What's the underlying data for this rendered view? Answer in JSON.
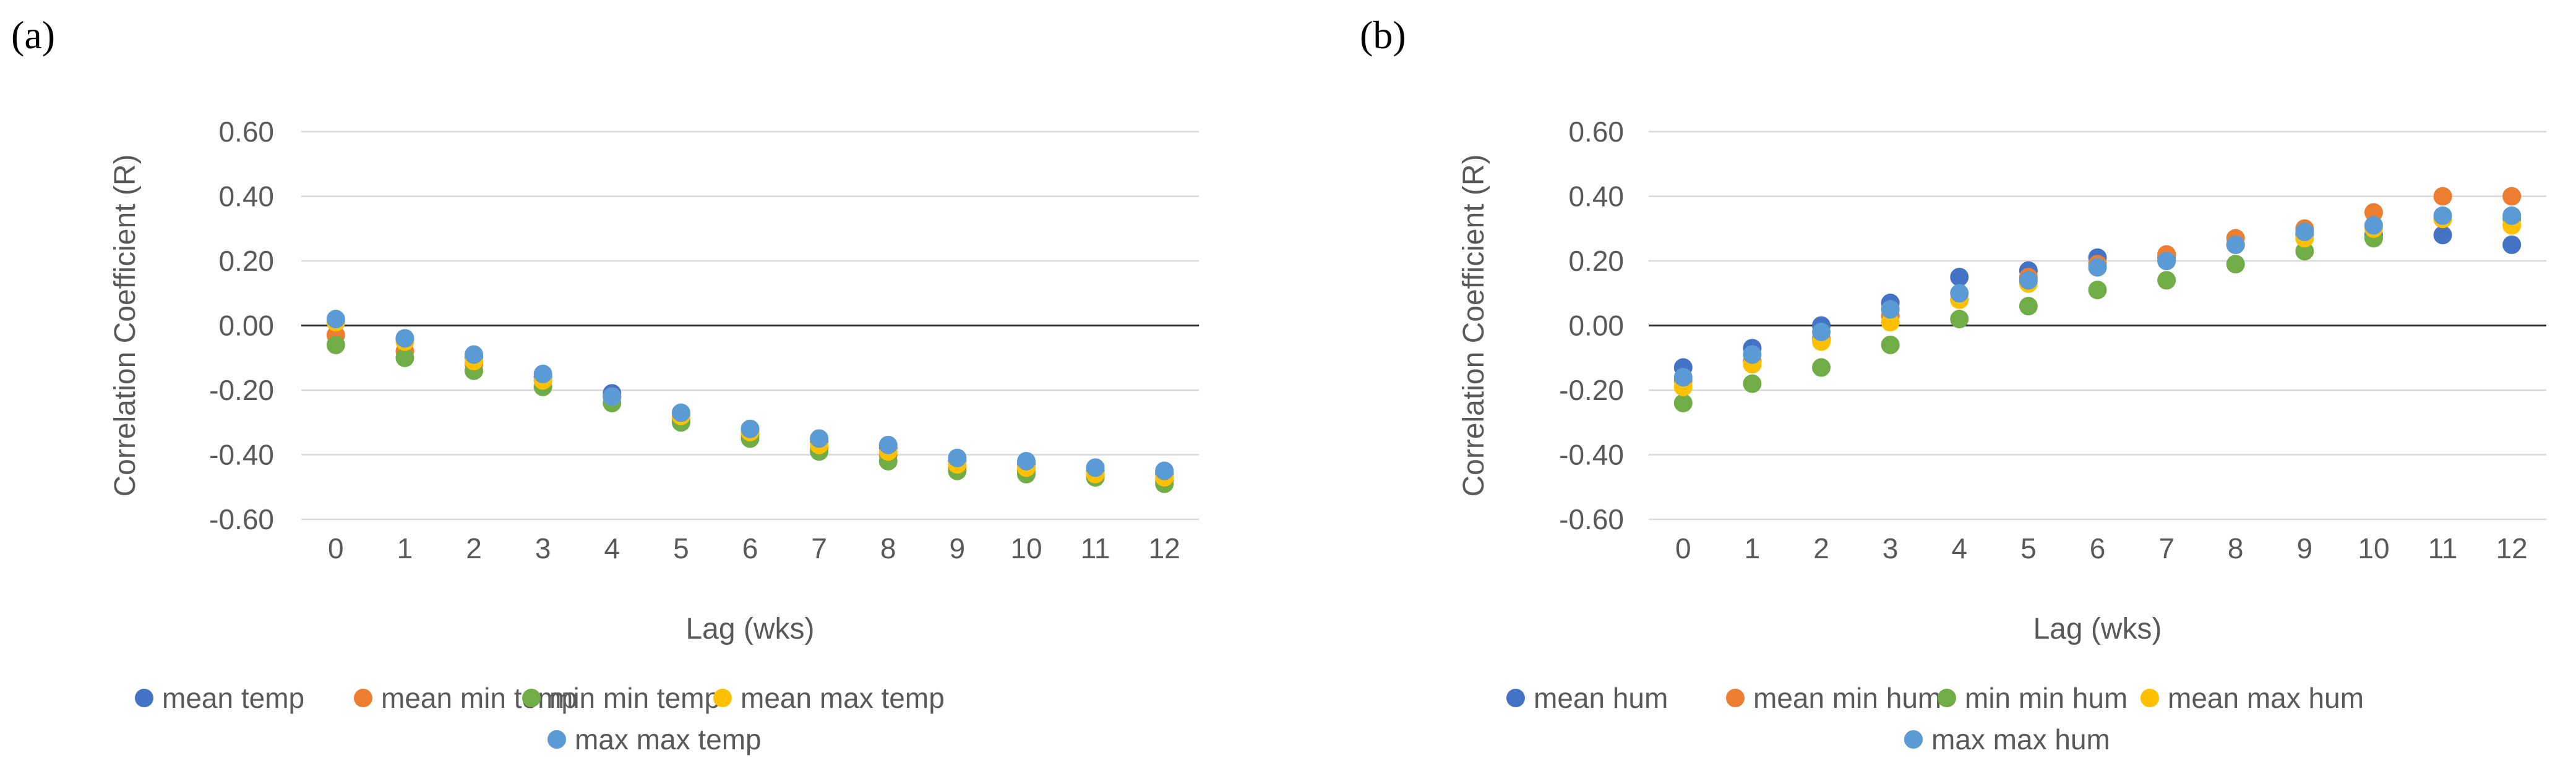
{
  "chart_data": [
    {
      "panel": "(a)",
      "type": "scatter",
      "ylabel": "Correlation Coefficient (R)",
      "xlabel": "Lag (wks)",
      "ylim": [
        -0.6,
        0.6
      ],
      "yticks": [
        "0.60",
        "0.40",
        "0.20",
        "0.00",
        "-0.20",
        "-0.40",
        "-0.60"
      ],
      "ytick_values": [
        0.6,
        0.4,
        0.2,
        0.0,
        -0.2,
        -0.4,
        -0.6
      ],
      "x": [
        0,
        1,
        2,
        3,
        4,
        5,
        6,
        7,
        8,
        9,
        10,
        11,
        12
      ],
      "xticks": [
        "0",
        "1",
        "2",
        "3",
        "4",
        "5",
        "6",
        "7",
        "8",
        "9",
        "10",
        "11",
        "12"
      ],
      "legend_position": "bottom",
      "series": [
        {
          "name": "mean temp",
          "color": "#4472C4",
          "values": [
            0.01,
            -0.04,
            -0.1,
            -0.16,
            -0.21,
            -0.28,
            -0.33,
            -0.36,
            -0.38,
            -0.42,
            -0.43,
            -0.45,
            -0.46
          ]
        },
        {
          "name": "mean min temp",
          "color": "#ED7D31",
          "values": [
            -0.03,
            -0.08,
            -0.12,
            -0.17,
            -0.22,
            -0.29,
            -0.34,
            -0.38,
            -0.4,
            -0.44,
            -0.45,
            -0.47,
            -0.48
          ]
        },
        {
          "name": "min min temp",
          "color": "#70AD47",
          "values": [
            -0.06,
            -0.1,
            -0.14,
            -0.19,
            -0.24,
            -0.3,
            -0.35,
            -0.39,
            -0.42,
            -0.45,
            -0.46,
            -0.47,
            -0.49
          ]
        },
        {
          "name": "mean max temp",
          "color": "#FFC000",
          "values": [
            0.01,
            -0.05,
            -0.11,
            -0.17,
            -0.22,
            -0.28,
            -0.33,
            -0.37,
            -0.39,
            -0.43,
            -0.44,
            -0.46,
            -0.47
          ]
        },
        {
          "name": "max max temp",
          "color": "#5B9BD5",
          "values": [
            0.02,
            -0.04,
            -0.09,
            -0.15,
            -0.22,
            -0.27,
            -0.32,
            -0.35,
            -0.37,
            -0.41,
            -0.42,
            -0.44,
            -0.45
          ]
        }
      ]
    },
    {
      "panel": "(b)",
      "type": "scatter",
      "ylabel": "Correlation Coefficient (R)",
      "xlabel": "Lag (wks)",
      "ylim": [
        -0.6,
        0.6
      ],
      "yticks": [
        "0.60",
        "0.40",
        "0.20",
        "0.00",
        "-0.20",
        "-0.40",
        "-0.60"
      ],
      "ytick_values": [
        0.6,
        0.4,
        0.2,
        0.0,
        -0.2,
        -0.4,
        -0.6
      ],
      "x": [
        0,
        1,
        2,
        3,
        4,
        5,
        6,
        7,
        8,
        9,
        10,
        11,
        12
      ],
      "xticks": [
        "0",
        "1",
        "2",
        "3",
        "4",
        "5",
        "6",
        "7",
        "8",
        "9",
        "10",
        "11",
        "12"
      ],
      "legend_position": "bottom",
      "series": [
        {
          "name": "mean hum",
          "color": "#4472C4",
          "values": [
            -0.13,
            -0.07,
            0.0,
            0.07,
            0.15,
            0.17,
            0.21,
            0.21,
            0.25,
            0.28,
            0.28,
            0.28,
            0.25
          ]
        },
        {
          "name": "mean min hum",
          "color": "#ED7D31",
          "values": [
            -0.17,
            -0.11,
            -0.04,
            0.03,
            0.08,
            0.15,
            0.19,
            0.22,
            0.27,
            0.3,
            0.35,
            0.4,
            0.4
          ]
        },
        {
          "name": "min min hum",
          "color": "#70AD47",
          "values": [
            -0.24,
            -0.18,
            -0.13,
            -0.06,
            0.02,
            0.06,
            0.11,
            0.14,
            0.19,
            0.23,
            0.27,
            0.33,
            0.33
          ]
        },
        {
          "name": "mean max hum",
          "color": "#FFC000",
          "values": [
            -0.19,
            -0.12,
            -0.05,
            0.01,
            0.08,
            0.13,
            0.18,
            0.2,
            0.25,
            0.27,
            0.3,
            0.33,
            0.31
          ]
        },
        {
          "name": "max max hum",
          "color": "#5B9BD5",
          "values": [
            -0.16,
            -0.09,
            -0.02,
            0.05,
            0.1,
            0.14,
            0.18,
            0.2,
            0.25,
            0.29,
            0.31,
            0.34,
            0.34
          ]
        }
      ]
    }
  ]
}
